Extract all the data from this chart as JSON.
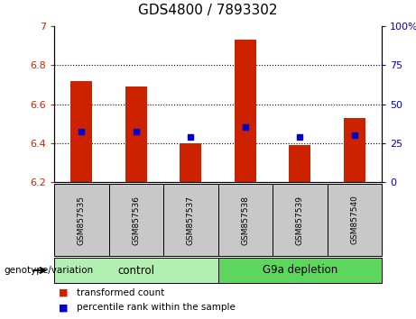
{
  "title": "GDS4800 / 7893302",
  "samples": [
    "GSM857535",
    "GSM857536",
    "GSM857537",
    "GSM857538",
    "GSM857539",
    "GSM857540"
  ],
  "bar_tops": [
    6.72,
    6.69,
    6.4,
    6.93,
    6.39,
    6.53
  ],
  "bar_bottom": 6.2,
  "blue_values_left": [
    6.46,
    6.46,
    6.43,
    6.48,
    6.43,
    6.44
  ],
  "ylim_left": [
    6.2,
    7.0
  ],
  "ylim_right": [
    0,
    100
  ],
  "yticks_left": [
    6.2,
    6.4,
    6.6,
    6.8,
    7.0
  ],
  "ytick_labels_left": [
    "6.2",
    "6.4",
    "6.6",
    "6.8",
    "7"
  ],
  "yticks_right": [
    0,
    25,
    50,
    75,
    100
  ],
  "ytick_labels_right": [
    "0",
    "25",
    "50",
    "75",
    "100%"
  ],
  "grid_yticks": [
    6.4,
    6.6,
    6.8
  ],
  "groups": [
    {
      "label": "control",
      "samples": [
        0,
        1,
        2
      ],
      "color": "#b2f0b2"
    },
    {
      "label": "G9a depletion",
      "samples": [
        3,
        4,
        5
      ],
      "color": "#5cd65c"
    }
  ],
  "bar_color": "#CC2200",
  "blue_color": "#0000CC",
  "title_fontsize": 11,
  "tick_label_color_left": "#CC2200",
  "tick_label_color_right": "#0000CC",
  "legend_labels": [
    "transformed count",
    "percentile rank within the sample"
  ],
  "genotype_label": "genotype/variation",
  "bar_width": 0.4,
  "sample_box_color": "#C8C8C8",
  "fig_width": 4.61,
  "fig_height": 3.54,
  "dpi": 100
}
